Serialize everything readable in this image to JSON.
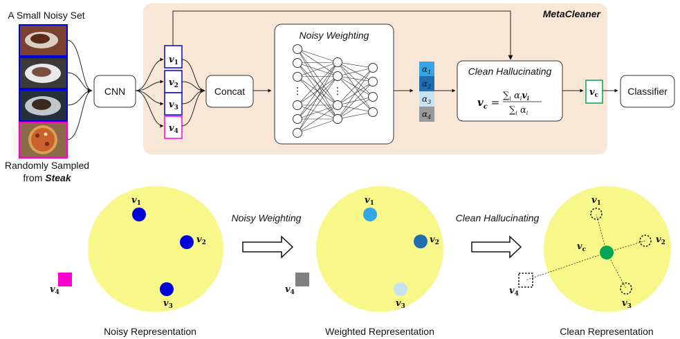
{
  "top": {
    "input_title": "A Small Noisy Set",
    "random_label_1": "Randomly Sampled",
    "random_label_2": "from",
    "random_label_3": "Steak",
    "cnn": "CNN",
    "concat": "Concat",
    "metacleaner": "MetaCleaner",
    "noisy_weighting": "Noisy Weighting",
    "clean_hallucinating": "Clean Hallucinating",
    "classifier": "Classifier",
    "v": "v",
    "vc_sub": "c",
    "alpha": "α",
    "formula_lhs": "v",
    "formula_sum": "∑",
    "formula_num_rest": "α",
    "formula_num_v": "v",
    "formula_den_rest": "α",
    "formula_i": "i",
    "ellipsis": "⋮",
    "nums": [
      "1",
      "2",
      "3",
      "4"
    ]
  },
  "bottom": {
    "noisy_rep": "Noisy Representation",
    "weighted_rep": "Weighted Representation",
    "clean_rep": "Clean Representation",
    "noisy_weighting": "Noisy Weighting",
    "clean_hallucinating": "Clean Hallucinating"
  },
  "colors": {
    "meta_bg": "#f8e6d6",
    "ellipse": "#f8f88a",
    "blue": "#0000dd",
    "magenta": "#ff00cc",
    "gray": "#808080",
    "green": "#00a651",
    "alpha1": "#33a6e6",
    "alpha2": "#1f6fb0",
    "alpha3": "#c7e2f1",
    "alpha4": "#999999"
  }
}
